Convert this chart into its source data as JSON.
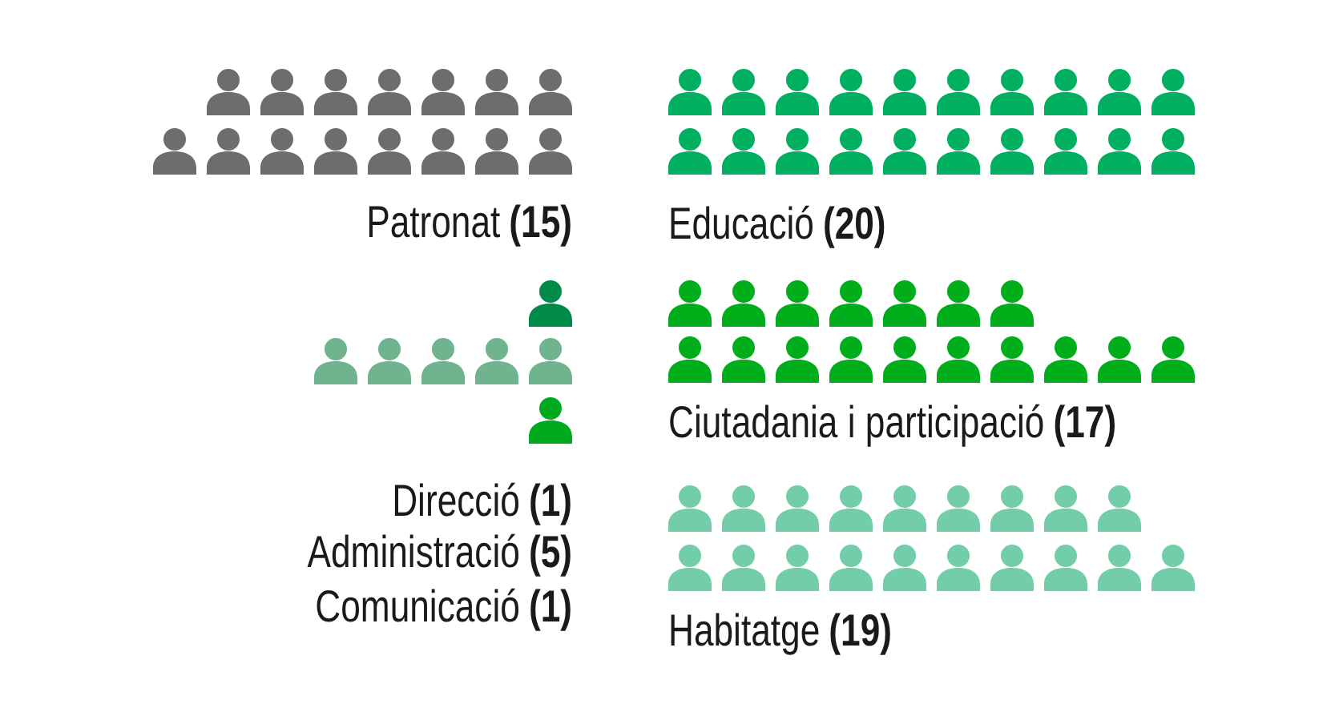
{
  "chart_data": {
    "type": "other",
    "categories": [
      "Patronat",
      "Educació",
      "Direcció",
      "Administració",
      "Comunicació",
      "Ciutadania i participació",
      "Habitatge"
    ],
    "values": [
      15,
      20,
      1,
      5,
      1,
      17,
      19
    ],
    "value_labels": [
      "(15)",
      "(20)",
      "(1)",
      "(5)",
      "(1)",
      "(17)",
      "(19)"
    ],
    "colors": [
      "#6d6d6d",
      "#00b060",
      "#008a48",
      "#6fb48e",
      "#00aa1e",
      "#00ad1a",
      "#73cda8"
    ]
  }
}
